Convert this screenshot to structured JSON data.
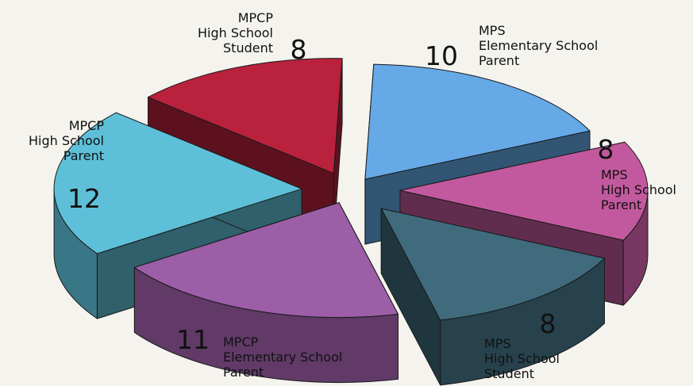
{
  "chart_data": {
    "type": "pie",
    "style": "3d-exploded",
    "slices": [
      {
        "label": [
          "MPS",
          "Elementary School",
          "Parent"
        ],
        "value": 10,
        "color": "#65a9e7"
      },
      {
        "label": [
          "MPS",
          "High School",
          "Parent"
        ],
        "value": 8,
        "color": "#c2599e"
      },
      {
        "label": [
          "MPS",
          "High School",
          "Student"
        ],
        "value": 8,
        "color": "#3f6b7c"
      },
      {
        "label": [
          "MPCP",
          "Elementary School",
          "Parent"
        ],
        "value": 11,
        "color": "#9c5ea7"
      },
      {
        "label": [
          "MPCP",
          "High School",
          "Parent"
        ],
        "value": 12,
        "color": "#5ec0d8"
      },
      {
        "label": [
          "MPCP",
          "High School",
          "Student"
        ],
        "value": 8,
        "color": "#b9213c"
      }
    ]
  }
}
